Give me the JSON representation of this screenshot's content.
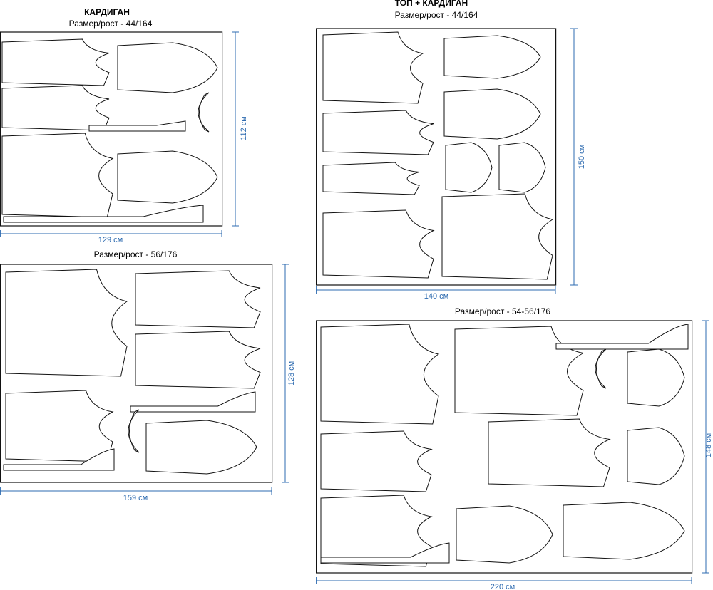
{
  "layouts": [
    {
      "title": "КАРДИГАН",
      "subtitle": "Размер/рост - 44/164",
      "height_label": "112 см",
      "width_label": "129 см"
    },
    {
      "title": "ТОП + КАРДИГАН",
      "subtitle": "Размер/рост - 44/164",
      "height_label": "150 см",
      "width_label": "140 см"
    },
    {
      "subtitle": "Размер/рост - 56/176",
      "height_label": "128 см",
      "width_label": "159 см"
    },
    {
      "subtitle": "Размер/рост - 54-56/176",
      "height_label": "148 см",
      "width_label": "220 см"
    }
  ]
}
